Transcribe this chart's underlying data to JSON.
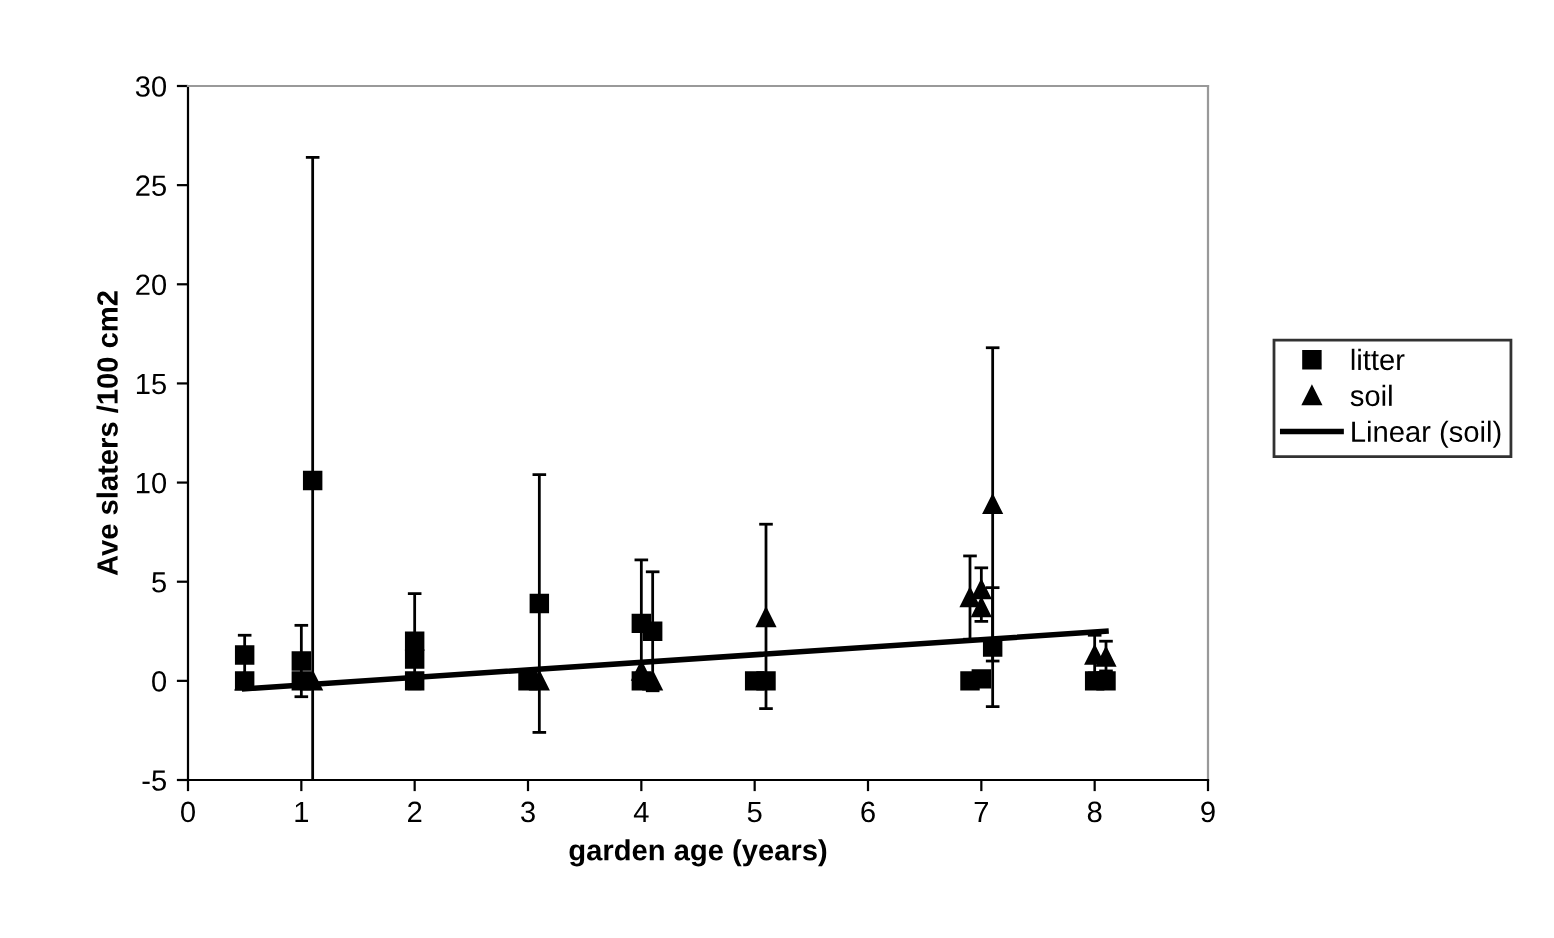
{
  "chart_data": {
    "type": "scatter",
    "xlabel": "garden age (years)",
    "ylabel": "Ave slaters /100 cm2",
    "xlim": [
      0,
      9
    ],
    "xticks": [
      0,
      1,
      2,
      3,
      4,
      5,
      6,
      7,
      8,
      9
    ],
    "ylim": [
      -5,
      30
    ],
    "yticks": [
      -5,
      0,
      5,
      10,
      15,
      20,
      25,
      30
    ],
    "grid": false,
    "legend": "right",
    "series": [
      {
        "name": "litter",
        "marker": "square",
        "color": "#000000",
        "x": [
          0.5,
          0.5,
          1,
          1,
          1.1,
          2,
          2,
          2,
          3,
          3.1,
          4,
          4,
          4.1,
          5,
          5.1,
          6.9,
          7,
          7.1,
          8,
          8.1
        ],
        "values": [
          1.3,
          0,
          1,
          0,
          10.1,
          2,
          1.1,
          0,
          0,
          3.9,
          2.9,
          0,
          2.5,
          0,
          0,
          0,
          0.1,
          1.7,
          0,
          0
        ],
        "errors": [
          [
            0.3,
            2.3
          ],
          null,
          [
            -0.8,
            2.8
          ],
          null,
          [
            -5,
            26.4
          ],
          [
            -0.4,
            4.4
          ],
          null,
          null,
          null,
          [
            -2.6,
            10.4
          ],
          [
            -0.3,
            6.1
          ],
          null,
          [
            -0.5,
            5.5
          ],
          null,
          null,
          null,
          null,
          [
            -1.3,
            4.7
          ],
          null,
          null
        ]
      },
      {
        "name": "soil",
        "marker": "triangle",
        "color": "#000000",
        "x": [
          0.5,
          1.1,
          3.1,
          4,
          4.1,
          5.1,
          6.9,
          7,
          7,
          7.1,
          8,
          8.1
        ],
        "values": [
          0,
          0,
          0,
          0.5,
          0,
          3.2,
          4.2,
          4.6,
          3.7,
          8.9,
          1.3,
          1.2
        ],
        "errors": [
          null,
          null,
          null,
          null,
          null,
          [
            -1.4,
            7.9
          ],
          [
            2.1,
            6.3
          ],
          [
            3.0,
            5.7
          ],
          null,
          [
            1.0,
            16.8
          ],
          [
            0.4,
            2.3
          ],
          [
            0.5,
            2.0
          ]
        ]
      },
      {
        "name": "Linear (soil)",
        "type": "line",
        "marker": "none",
        "line_style": "solid",
        "color": "#000000",
        "x": [
          0.5,
          8.1
        ],
        "values": [
          -0.4,
          2.5
        ]
      }
    ]
  }
}
